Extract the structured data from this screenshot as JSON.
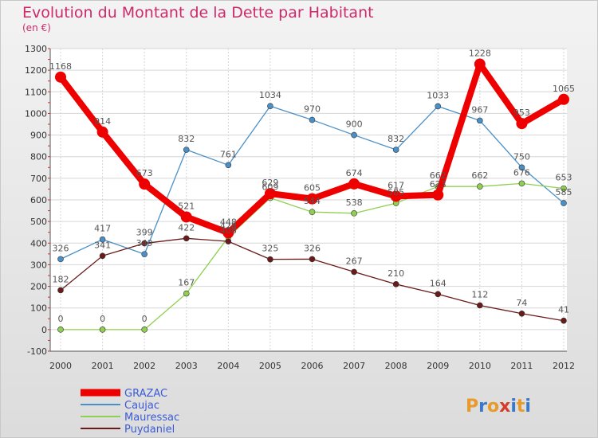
{
  "title": "Evolution du Montant de la Dette par Habitant",
  "subtitle": "(en €)",
  "logo": "Proxiti",
  "chart_data": {
    "type": "line",
    "x": [
      "2000",
      "2001",
      "2002",
      "2003",
      "2004",
      "2005",
      "2006",
      "2007",
      "2008",
      "2009",
      "2010",
      "2011",
      "2012"
    ],
    "ylim": [
      -100,
      1300
    ],
    "yticks": [
      -100,
      0,
      100,
      200,
      300,
      400,
      500,
      600,
      700,
      800,
      900,
      1000,
      1100,
      1200,
      1300
    ],
    "grid": true,
    "legend_position": "bottom-left",
    "series": [
      {
        "name": "GRAZAC",
        "color": "#ee0000",
        "values": [
          1168,
          914,
          673,
          521,
          448,
          629,
          605,
          674,
          617,
          623,
          1228,
          953,
          1065
        ]
      },
      {
        "name": "Caujac",
        "color": "#4a90c8",
        "values": [
          326,
          417,
          349,
          832,
          761,
          1034,
          970,
          900,
          832,
          1033,
          967,
          750,
          585
        ]
      },
      {
        "name": "Mauressac",
        "color": "#90d050",
        "values": [
          0,
          0,
          0,
          167,
          428,
          609,
          544,
          538,
          585,
          662,
          662,
          676,
          653
        ]
      },
      {
        "name": "Puydaniel",
        "color": "#6b1a1a",
        "values": [
          182,
          341,
          399,
          422,
          408,
          325,
          326,
          267,
          210,
          164,
          112,
          74,
          41
        ]
      }
    ]
  }
}
